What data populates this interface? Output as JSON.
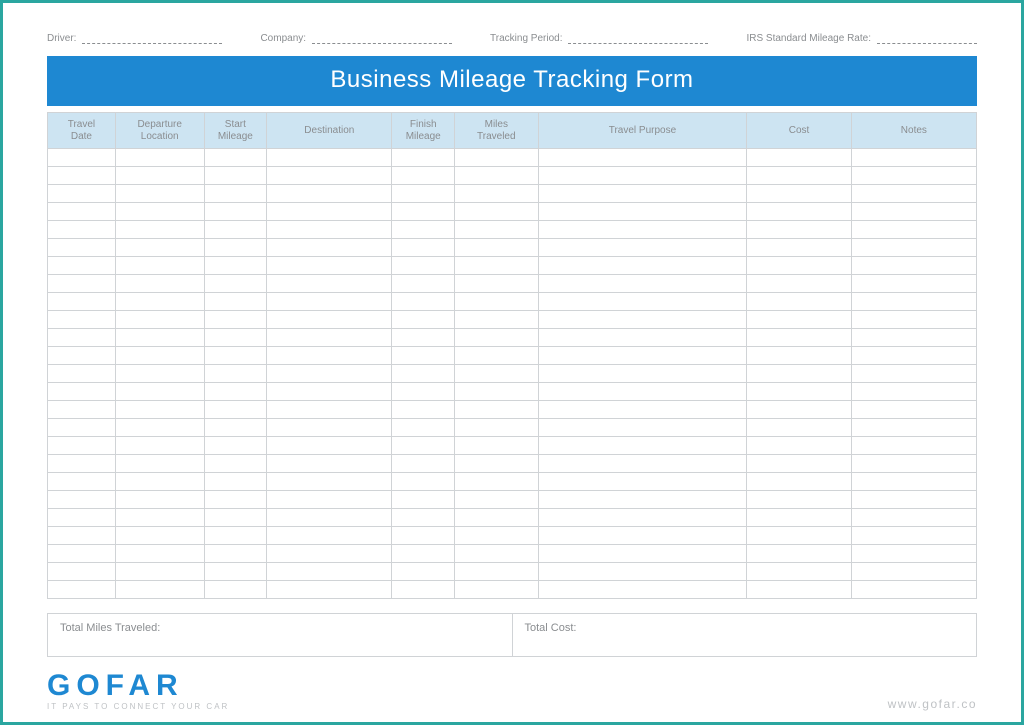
{
  "meta": {
    "driver_label": "Driver:",
    "company_label": "Company:",
    "period_label": "Tracking Period:",
    "rate_label": "IRS Standard Mileage Rate:"
  },
  "title": "Business Mileage Tracking Form",
  "columns": [
    "Travel\nDate",
    "Departure\nLocation",
    "Start\nMileage",
    "Destination",
    "Finish\nMileage",
    "Miles\nTraveled",
    "Travel Purpose",
    "Cost",
    "Notes"
  ],
  "row_count": 25,
  "totals": {
    "miles_label": "Total Miles Traveled:",
    "cost_label": "Total Cost:"
  },
  "brand": {
    "logo": "GOFAR",
    "tagline": "IT PAYS TO CONNECT YOUR CAR",
    "site": "www.gofar.co"
  },
  "colors": {
    "frame_border": "#2aa6a0",
    "title_bg": "#1e88d2",
    "title_text": "#ffffff",
    "header_bg": "#cde4f2",
    "header_text": "#8a8d90",
    "grid_border": "#d0d3d6",
    "meta_text": "#8a8d90",
    "logo_color": "#1e88d2",
    "footer_text": "#bfc2c5"
  },
  "column_widths_pct": [
    6.5,
    8.5,
    6,
    12,
    6,
    8,
    20,
    10,
    12
  ]
}
